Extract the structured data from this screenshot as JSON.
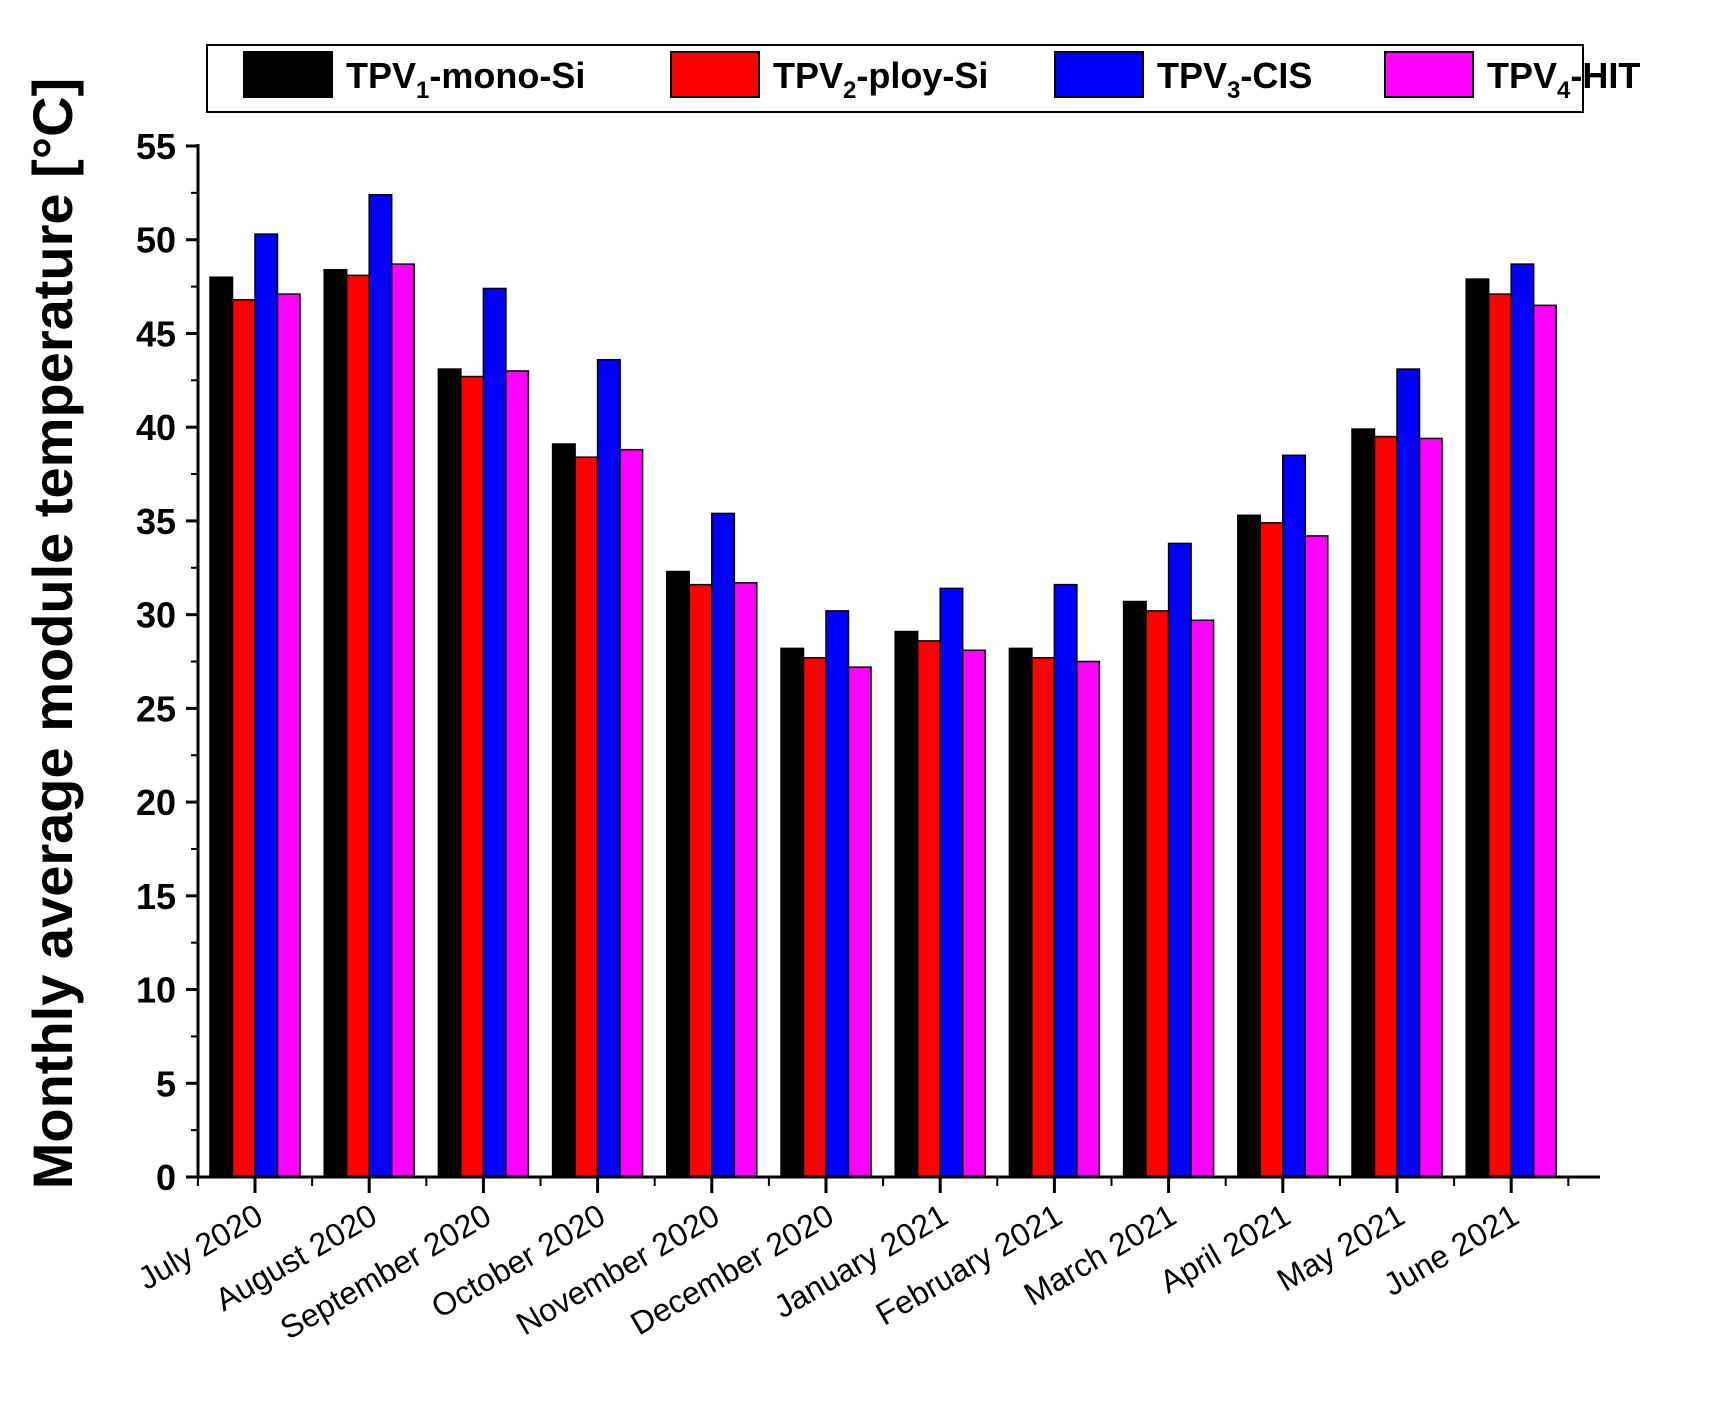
{
  "chart_data": {
    "type": "bar",
    "title": "",
    "xlabel": "",
    "ylabel": "Monthly average module temperature [°C]",
    "ylim": [
      0,
      55
    ],
    "yticks": [
      0,
      5,
      10,
      15,
      20,
      25,
      30,
      35,
      40,
      45,
      50,
      55
    ],
    "grid": false,
    "legend_position": "top",
    "categories": [
      "July 2020",
      "August 2020",
      "September 2020",
      "October 2020",
      "November 2020",
      "December 2020",
      "January 2021",
      "February 2021",
      "March 2021",
      "April 2021",
      "May 2021",
      "June 2021"
    ],
    "series": [
      {
        "name": "TPV1-mono-Si",
        "label_main": "TPV",
        "label_sub": "1",
        "label_suffix": "-mono-Si",
        "color": "#000000",
        "values": [
          48.0,
          48.4,
          43.1,
          39.1,
          32.3,
          28.2,
          29.1,
          28.2,
          30.7,
          35.3,
          39.9,
          47.9
        ]
      },
      {
        "name": "TPV2-ploy-Si",
        "label_main": "TPV",
        "label_sub": "2",
        "label_suffix": "-ploy-Si",
        "color": "#ff0000",
        "values": [
          46.8,
          48.1,
          42.7,
          38.4,
          31.6,
          27.7,
          28.6,
          27.7,
          30.2,
          34.9,
          39.5,
          47.1
        ]
      },
      {
        "name": "TPV3-CIS",
        "label_main": "TPV",
        "label_sub": "3",
        "label_suffix": "-CIS",
        "color": "#0000ff",
        "values": [
          50.3,
          52.4,
          47.4,
          43.6,
          35.4,
          30.2,
          31.4,
          31.6,
          33.8,
          38.5,
          43.1,
          48.7
        ]
      },
      {
        "name": "TPV4-HIT",
        "label_main": "TPV",
        "label_sub": "4",
        "label_suffix": "-HIT",
        "color": "#ff00ff",
        "values": [
          47.1,
          48.7,
          43.0,
          38.8,
          31.7,
          27.2,
          28.1,
          27.5,
          29.7,
          34.2,
          39.4,
          46.5
        ]
      }
    ]
  }
}
